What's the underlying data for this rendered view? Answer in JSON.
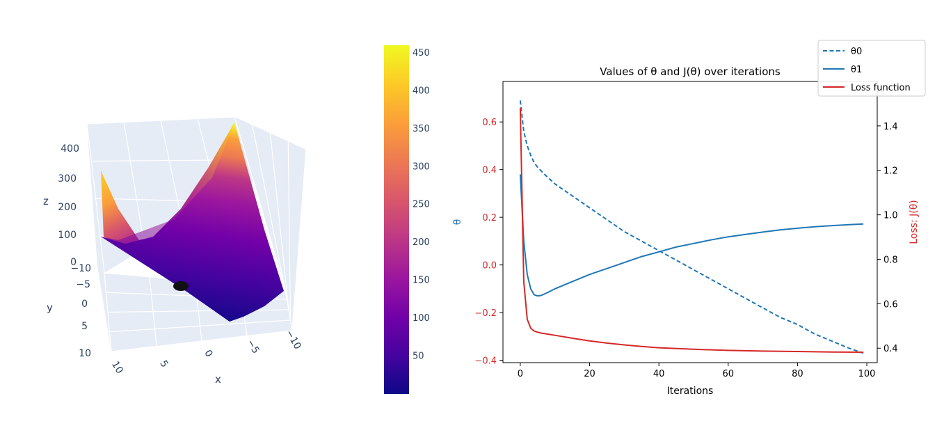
{
  "surface_plot": {
    "axis_titles": {
      "x": "x",
      "y": "y",
      "z": "z"
    },
    "x_ticks": [
      "10",
      "5",
      "0",
      "−5",
      "−10"
    ],
    "y_ticks": [
      "−10",
      "−5",
      "0",
      "5",
      "10"
    ],
    "z_ticks": [
      "0",
      "100",
      "200",
      "300",
      "400"
    ],
    "colorbar_ticks": [
      "50",
      "100",
      "150",
      "200",
      "250",
      "300",
      "350",
      "400",
      "450"
    ],
    "colorscale": [
      "#0d0887",
      "#46039f",
      "#7201a8",
      "#9c179e",
      "#bd3786",
      "#d8576b",
      "#ed7953",
      "#fb9f3a",
      "#fdca26",
      "#f0f921"
    ],
    "colorbar_range": [
      0,
      460
    ],
    "marker_color": "#111111"
  },
  "chart_data": {
    "type": "line",
    "title": "Values of θ and J(θ) over iterations",
    "xlabel": "Iterations",
    "ylabel_left": "θ",
    "ylabel_right": "Loss: J(θ)",
    "xlim": [
      -5,
      103
    ],
    "ylim_left": [
      -0.41,
      0.77
    ],
    "ylim_right": [
      0.335,
      1.6
    ],
    "x_ticks": [
      "0",
      "20",
      "40",
      "60",
      "80",
      "100"
    ],
    "y_left_ticks": [
      "−0.4",
      "−0.2",
      "0.0",
      "0.2",
      "0.4",
      "0.6"
    ],
    "y_right_ticks": [
      "0.4",
      "0.6",
      "0.8",
      "1.0",
      "1.2",
      "1.4"
    ],
    "legend": {
      "position": "top-right",
      "entries": [
        "θ0",
        "θ1",
        "Loss function"
      ]
    },
    "colors": {
      "theta0": "#1f77b4",
      "theta1": "#1f77b4",
      "loss": "#d62728",
      "left_axis_label": "#1f77b4",
      "right_axis_label": "#d62728",
      "left_ticks": "#d62728"
    },
    "series": [
      {
        "name": "θ0",
        "axis": "left",
        "style": "dashed",
        "x": [
          0,
          1,
          2,
          3,
          4,
          5,
          7,
          10,
          15,
          20,
          25,
          30,
          35,
          40,
          45,
          50,
          55,
          60,
          65,
          70,
          75,
          80,
          85,
          90,
          95,
          99
        ],
        "y": [
          0.69,
          0.56,
          0.5,
          0.46,
          0.43,
          0.41,
          0.38,
          0.34,
          0.29,
          0.24,
          0.19,
          0.14,
          0.1,
          0.06,
          0.02,
          -0.02,
          -0.06,
          -0.1,
          -0.14,
          -0.18,
          -0.22,
          -0.25,
          -0.29,
          -0.32,
          -0.35,
          -0.37
        ]
      },
      {
        "name": "θ1",
        "axis": "left",
        "style": "solid",
        "x": [
          0,
          1,
          2,
          3,
          4,
          5,
          6,
          8,
          10,
          15,
          20,
          25,
          30,
          35,
          40,
          45,
          50,
          55,
          60,
          65,
          70,
          75,
          80,
          85,
          90,
          95,
          99
        ],
        "y": [
          0.38,
          0.1,
          -0.04,
          -0.1,
          -0.125,
          -0.13,
          -0.128,
          -0.115,
          -0.1,
          -0.07,
          -0.04,
          -0.015,
          0.01,
          0.035,
          0.055,
          0.075,
          0.09,
          0.105,
          0.118,
          0.128,
          0.138,
          0.147,
          0.154,
          0.16,
          0.165,
          0.169,
          0.172
        ]
      },
      {
        "name": "Loss function",
        "axis": "right",
        "style": "solid",
        "x": [
          0,
          1,
          2,
          3,
          4,
          5,
          6,
          8,
          10,
          15,
          20,
          25,
          30,
          35,
          40,
          50,
          60,
          70,
          80,
          90,
          99
        ],
        "y": [
          1.48,
          0.7,
          0.53,
          0.49,
          0.477,
          0.472,
          0.468,
          0.463,
          0.458,
          0.445,
          0.433,
          0.423,
          0.415,
          0.408,
          0.402,
          0.395,
          0.39,
          0.387,
          0.385,
          0.383,
          0.382
        ]
      }
    ]
  }
}
